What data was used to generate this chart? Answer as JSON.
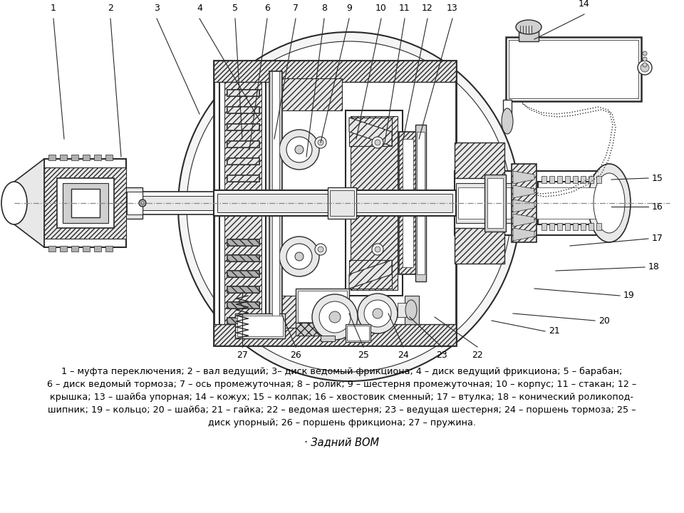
{
  "bg_color": "#ffffff",
  "fig_width": 9.6,
  "fig_height": 7.2,
  "dpi": 100,
  "line_color": "#2a2a2a",
  "text_color": "#000000",
  "legend_line1": "1 – муфта переключения; 2 – вал ведущий; 3– диск ведомый фрикциона; 4 – диск ведущий фрикциона; 5 – барабан;",
  "legend_line2": "6 – диск ведомый тормоза; 7 – ось промежуточная; 8 – ролик; 9 – шестерня промежуточная; 10 – корпус; 11 – стакан; 12 –",
  "legend_line3": "крышка; 13 – шайба упорная; 14 – кожух; 15 – колпак; 16 – хвостовик сменный; 17 – втулка; 18 – конический роликопод-",
  "legend_line4": "шипник; 19 – кольцо; 20 – шайба; 21 – гайка; 22 – ведомая шестерня; 23 – ведущая шестерня; 24 – поршень тормоза; 25 –",
  "legend_line5": "диск упорный; 26 – поршень фрикциона; 27 – пружина.",
  "subtitle": "· Задний ВОМ",
  "legend_fontsize": 9.2,
  "subtitle_fontsize": 10.5,
  "number_fontsize": 9,
  "hatch_color": "#555555",
  "gray_fill": "#e8e8e8",
  "mid_fill": "#d0d0d0",
  "dark_fill": "#b0b0b0"
}
